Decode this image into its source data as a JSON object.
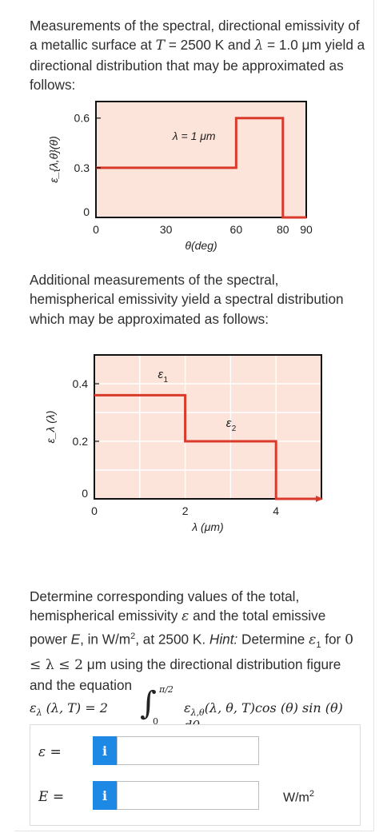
{
  "intro": {
    "part1": "Measurements of the spectral, directional emissivity of a metallic surface at ",
    "T_sym": "T",
    "T_eq": " = 2500 K and ",
    "lambda_sym": "λ",
    "lambda_eq": " = 1.0 μm",
    "part2": " yield a directional distribution that may be approximated as follows:"
  },
  "chart_data": [
    {
      "type": "line",
      "title": "",
      "annotation": "λ = 1 μm",
      "xlabel": "θ(deg)",
      "ylabel": "ε_{λ,θ}(θ)",
      "xlim": [
        0,
        90
      ],
      "ylim": [
        0,
        0.7
      ],
      "xticks": [
        {
          "value": 0,
          "label": "0"
        },
        {
          "value": 30,
          "label": "30"
        },
        {
          "value": 60,
          "label": "60"
        },
        {
          "value": 80,
          "label": "80"
        },
        {
          "value": 90,
          "label": "90"
        }
      ],
      "yticks": [
        {
          "value": 0,
          "label": "0"
        },
        {
          "value": 0.3,
          "label": "0.3"
        },
        {
          "value": 0.6,
          "label": "0.6"
        }
      ],
      "x": [
        0,
        60,
        60,
        80,
        80,
        90
      ],
      "y": [
        0.3,
        0.3,
        0.6,
        0.6,
        0.0,
        0.0
      ],
      "grid": false,
      "color": "#d93a2b",
      "background": "#fce4da"
    },
    {
      "type": "line",
      "title": "",
      "xlabel": "λ (μm)",
      "ylabel": "ε_λ (λ)",
      "xlim": [
        0,
        5
      ],
      "ylim": [
        0,
        0.5
      ],
      "xticks": [
        {
          "value": 0,
          "label": "0"
        },
        {
          "value": 2,
          "label": "2"
        },
        {
          "value": 4,
          "label": "4"
        }
      ],
      "yticks": [
        {
          "value": 0,
          "label": "0"
        },
        {
          "value": 0.2,
          "label": "0.2"
        },
        {
          "value": 0.4,
          "label": "0.4"
        }
      ],
      "x": [
        0,
        2,
        2,
        4,
        4,
        5
      ],
      "y": [
        0.36,
        0.36,
        0.2,
        0.2,
        0.0,
        0.0
      ],
      "labels": [
        {
          "text": "ε",
          "sub": "1",
          "x": 1.4,
          "y": 0.42
        },
        {
          "text": "ε",
          "sub": "2",
          "x": 2.9,
          "y": 0.25
        }
      ],
      "grid": true,
      "color": "#d93a2b",
      "background": "#fce4da"
    }
  ],
  "mid_text": "Additional measurements of the spectral, hemispherical emissivity yield a spectral distribution which may be approximated as follows:",
  "task": {
    "p1": "Determine corresponding values of the total, hemispherical emissivity ",
    "eps": "ε",
    "p2": " and the total emissive power ",
    "E": "E",
    "p3": ", in W/m",
    "sup": "2",
    "p4": ", at 2500 K. ",
    "hint_label": "Hint:",
    "p5": " Determine ",
    "eps1": "ε",
    "eps1_sub": "1",
    "p6": " for ",
    "range": "0 ≤ λ ≤ 2",
    "p7": " μm using the directional distribution figure and the equation"
  },
  "equation": {
    "lhs": "ε",
    "lhs_sub": "λ",
    "lhs_args": "(λ, T) = 2",
    "upper": "π/2",
    "lower": "0",
    "integrand": "ε",
    "integrand_sub": "λ,θ",
    "integrand_args": "(λ, θ, T)cos (θ) sin (θ) dθ."
  },
  "answers": {
    "eps_label": "ε =",
    "E_label": "E =",
    "info_icon": "i",
    "eps_value": "",
    "E_value": "",
    "E_unit": "W/m",
    "E_unit_sup": "2"
  }
}
